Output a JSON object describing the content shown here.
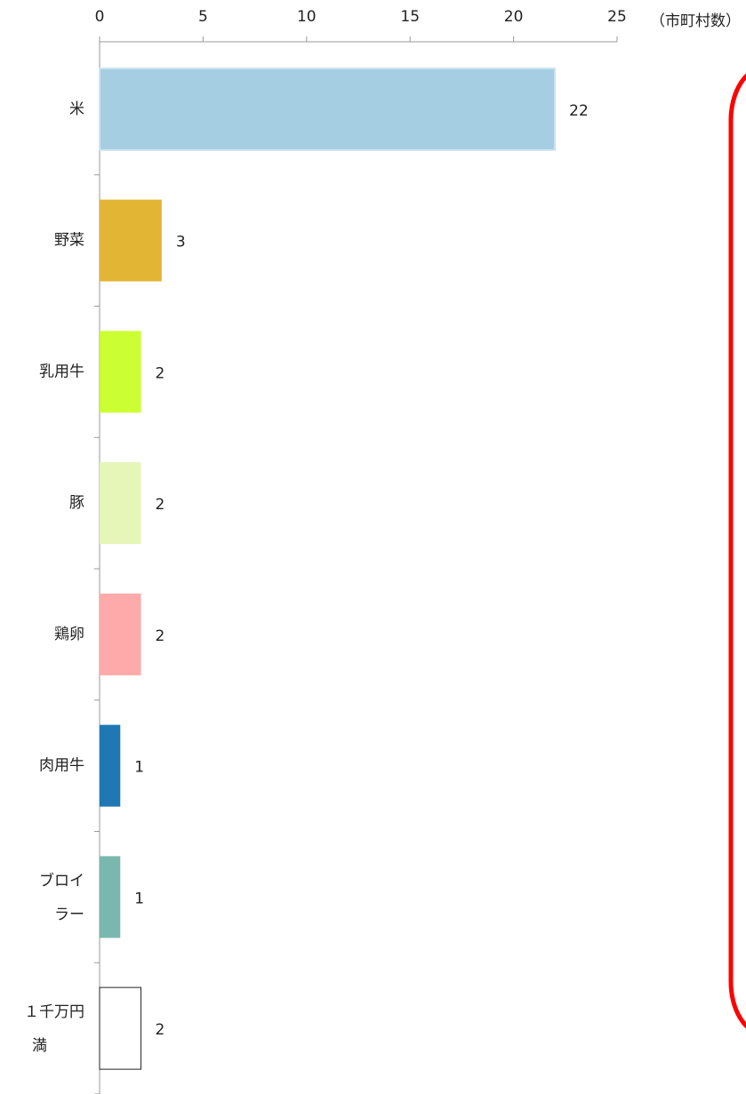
{
  "chart_data": {
    "type": "bar",
    "orientation": "horizontal",
    "unit_label": "（市町村数）",
    "categories": [
      "米",
      "野菜",
      "乳用牛",
      "豚",
      "鶏卵",
      "肉用牛",
      "ブロイラー",
      "１千万円未満"
    ],
    "values": [
      22,
      3,
      2,
      2,
      2,
      1,
      1,
      2
    ],
    "colors": [
      "#a6cee3",
      "#e3b535",
      "#ccff33",
      "#e6f5b8",
      "#ffaaaa",
      "#1f78b4",
      "#7ab8af",
      "#ffffff"
    ],
    "xlim": [
      0,
      25
    ],
    "xticks": [
      0,
      5,
      10,
      15,
      20,
      25
    ],
    "grid": false
  }
}
